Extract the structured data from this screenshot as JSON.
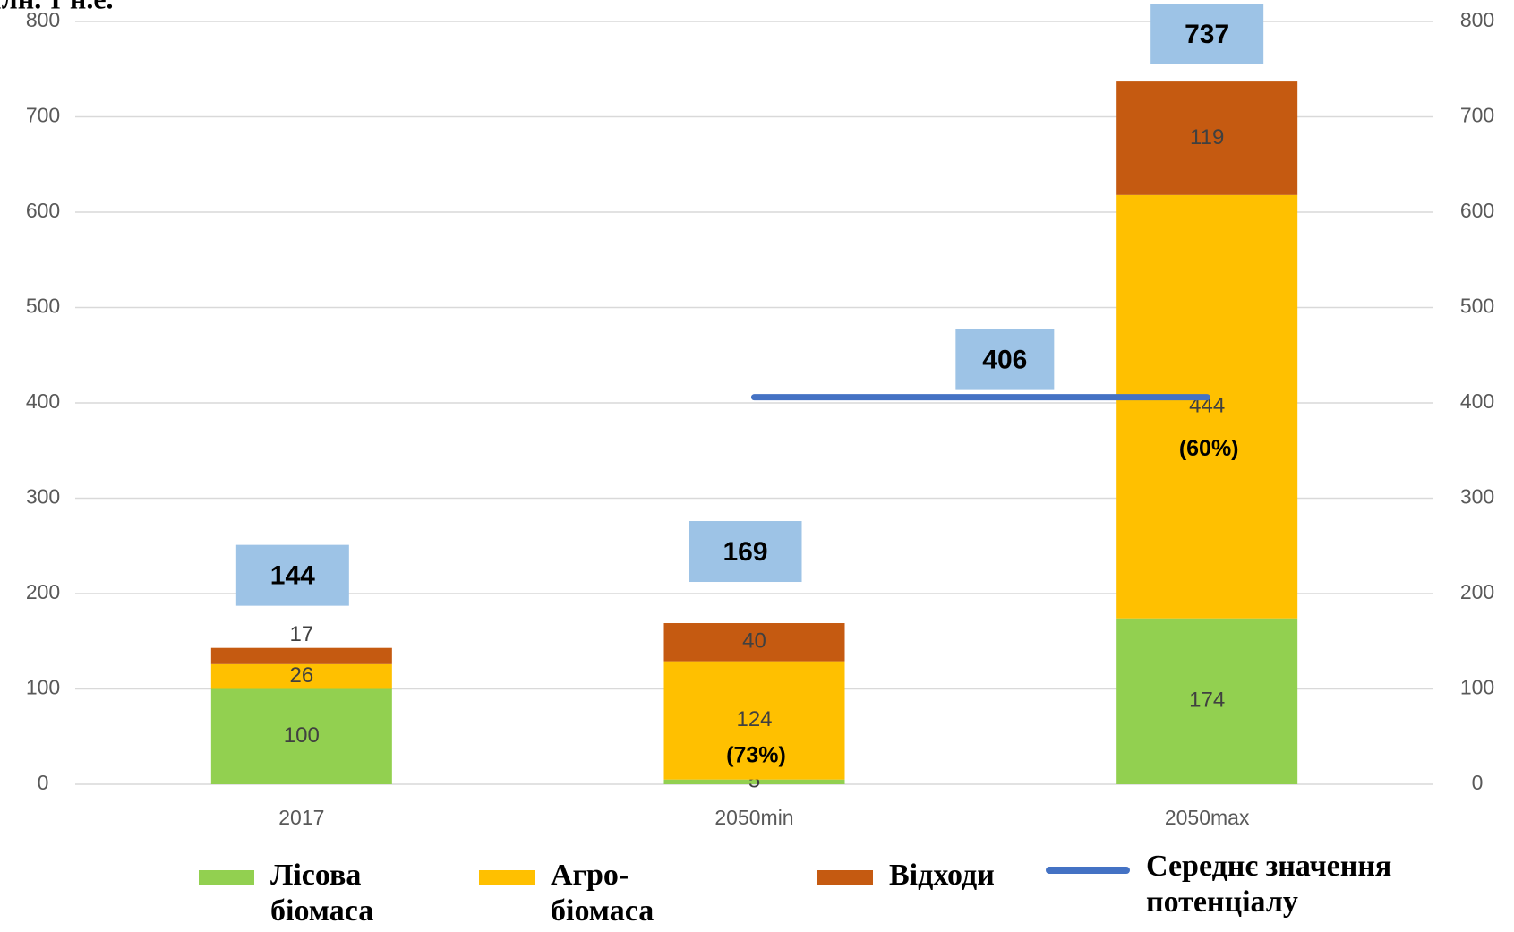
{
  "chart_data": {
    "type": "stacked_bar",
    "y_label": "млн. т н.е.",
    "categories": [
      "2017",
      "2050min",
      "2050max"
    ],
    "series": [
      {
        "name": "Лісова біомаса",
        "color": "#92d050",
        "values": [
          100,
          5,
          174
        ]
      },
      {
        "name": "Агро-біомаса",
        "color": "#ffc000",
        "values": [
          26,
          124,
          444
        ]
      },
      {
        "name": "Відходи",
        "color": "#c55a11",
        "values": [
          17,
          40,
          119
        ]
      }
    ],
    "totals": [
      144,
      169,
      737
    ],
    "percent_labels": [
      null,
      "(73%)",
      "(60%)"
    ],
    "line": {
      "name": "Середнє значення потенціалу",
      "color": "#4472c4",
      "values": [
        null,
        406,
        406
      ]
    },
    "label_box_color": "#9dc3e6",
    "ylim": [
      0,
      800
    ],
    "yticks": [
      0,
      100,
      200,
      300,
      400,
      500,
      600,
      700,
      800
    ],
    "y2lim": [
      0,
      800
    ],
    "y2ticks": [
      0,
      100,
      200,
      300,
      400,
      500,
      600,
      700,
      800
    ],
    "grid": true,
    "legend": "bottom"
  }
}
